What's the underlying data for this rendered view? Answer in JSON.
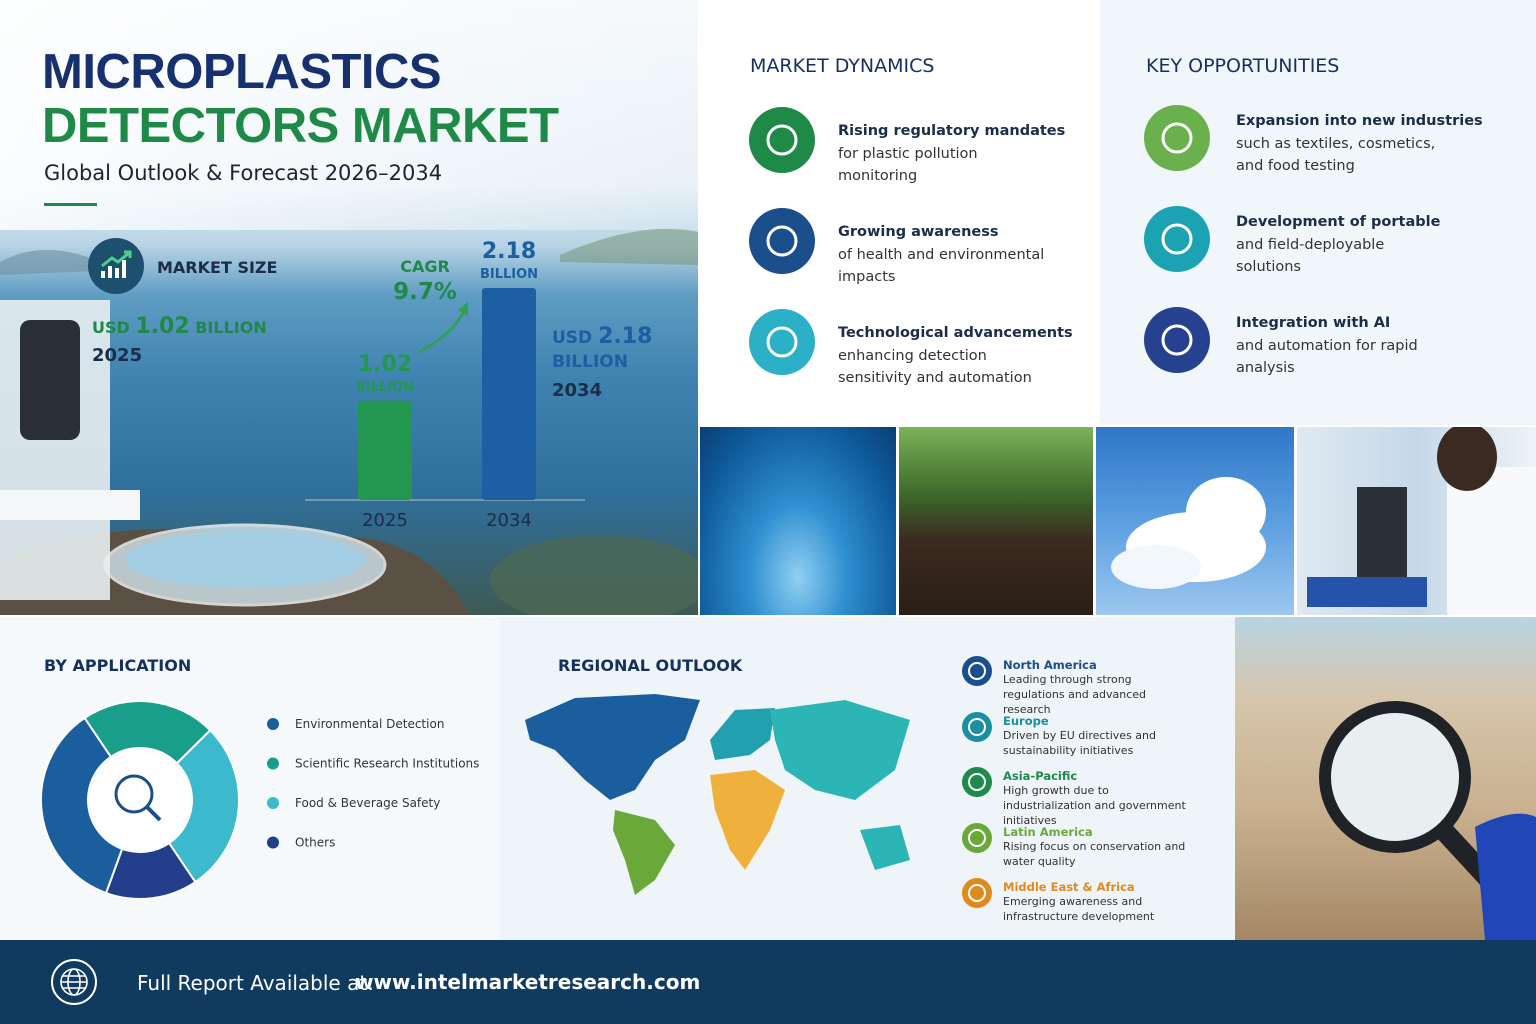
{
  "header": {
    "title_line1": "MICROPLASTICS",
    "title_line2": "DETECTORS MARKET",
    "subtitle": "Global Outlook & Forecast 2026–2034"
  },
  "market_size": {
    "label": "MARKET SIZE",
    "currency": "USD",
    "start_amount": "1.02",
    "unit": "BILLION",
    "start_year": "2025",
    "end_amount": "2.18",
    "end_year": "2034"
  },
  "chart_data": [
    {
      "type": "bar",
      "categories": [
        "2025",
        "2034"
      ],
      "values": [
        1.02,
        2.18
      ],
      "unit": "BILLION",
      "colors": [
        "#23974f",
        "#1d5fa3"
      ],
      "annotation_label": "CAGR",
      "annotation_value": "9.7%"
    },
    {
      "type": "pie",
      "title": "BY APPLICATION",
      "categories": [
        "Environmental Detection",
        "Scientific Research Institutions",
        "Food & Beverage Safety",
        "Others"
      ],
      "values": [
        35,
        22,
        28,
        15
      ],
      "colors": [
        "#1b5e9e",
        "#1a9e8c",
        "#3cb9cc",
        "#233f8c"
      ]
    }
  ],
  "market_dynamics": {
    "title": "MARKET DYNAMICS",
    "items": [
      {
        "title": "Rising regulatory mandates",
        "text": "for plastic pollution monitoring"
      },
      {
        "title": "Growing awareness",
        "text": "of health and environmental impacts"
      },
      {
        "title": "Technological advancements",
        "text": "enhancing detection sensitivity and automation"
      }
    ]
  },
  "key_opportunities": {
    "title": "KEY OPPORTUNITIES",
    "items": [
      {
        "title": "Expansion into new industries",
        "text": "such as textiles, cosmetics, and food testing"
      },
      {
        "title": "Development of portable",
        "text": "and field-deployable solutions"
      },
      {
        "title": "Integration with AI",
        "text": "and automation for rapid analysis"
      }
    ]
  },
  "regional_outlook": {
    "title": "REGIONAL OUTLOOK",
    "regions": [
      {
        "name": "North America",
        "text": "Leading through strong regulations and advanced research",
        "color": "#1b4f8c"
      },
      {
        "name": "Europe",
        "text": "Driven by EU directives and sustainability initiatives",
        "color": "#1b8fa0"
      },
      {
        "name": "Asia-Pacific",
        "text": "High growth due to industrialization and government initiatives",
        "color": "#1f8a4c"
      },
      {
        "name": "Latin America",
        "text": "Rising focus on conservation and water quality",
        "color": "#6aa83a"
      },
      {
        "name": "Middle East & Africa",
        "text": "Emerging awareness and infrastructure development",
        "color": "#e08a1e"
      }
    ]
  },
  "footer": {
    "label": "Full Report Available at:",
    "url": "www.intelmarketresearch.com"
  }
}
